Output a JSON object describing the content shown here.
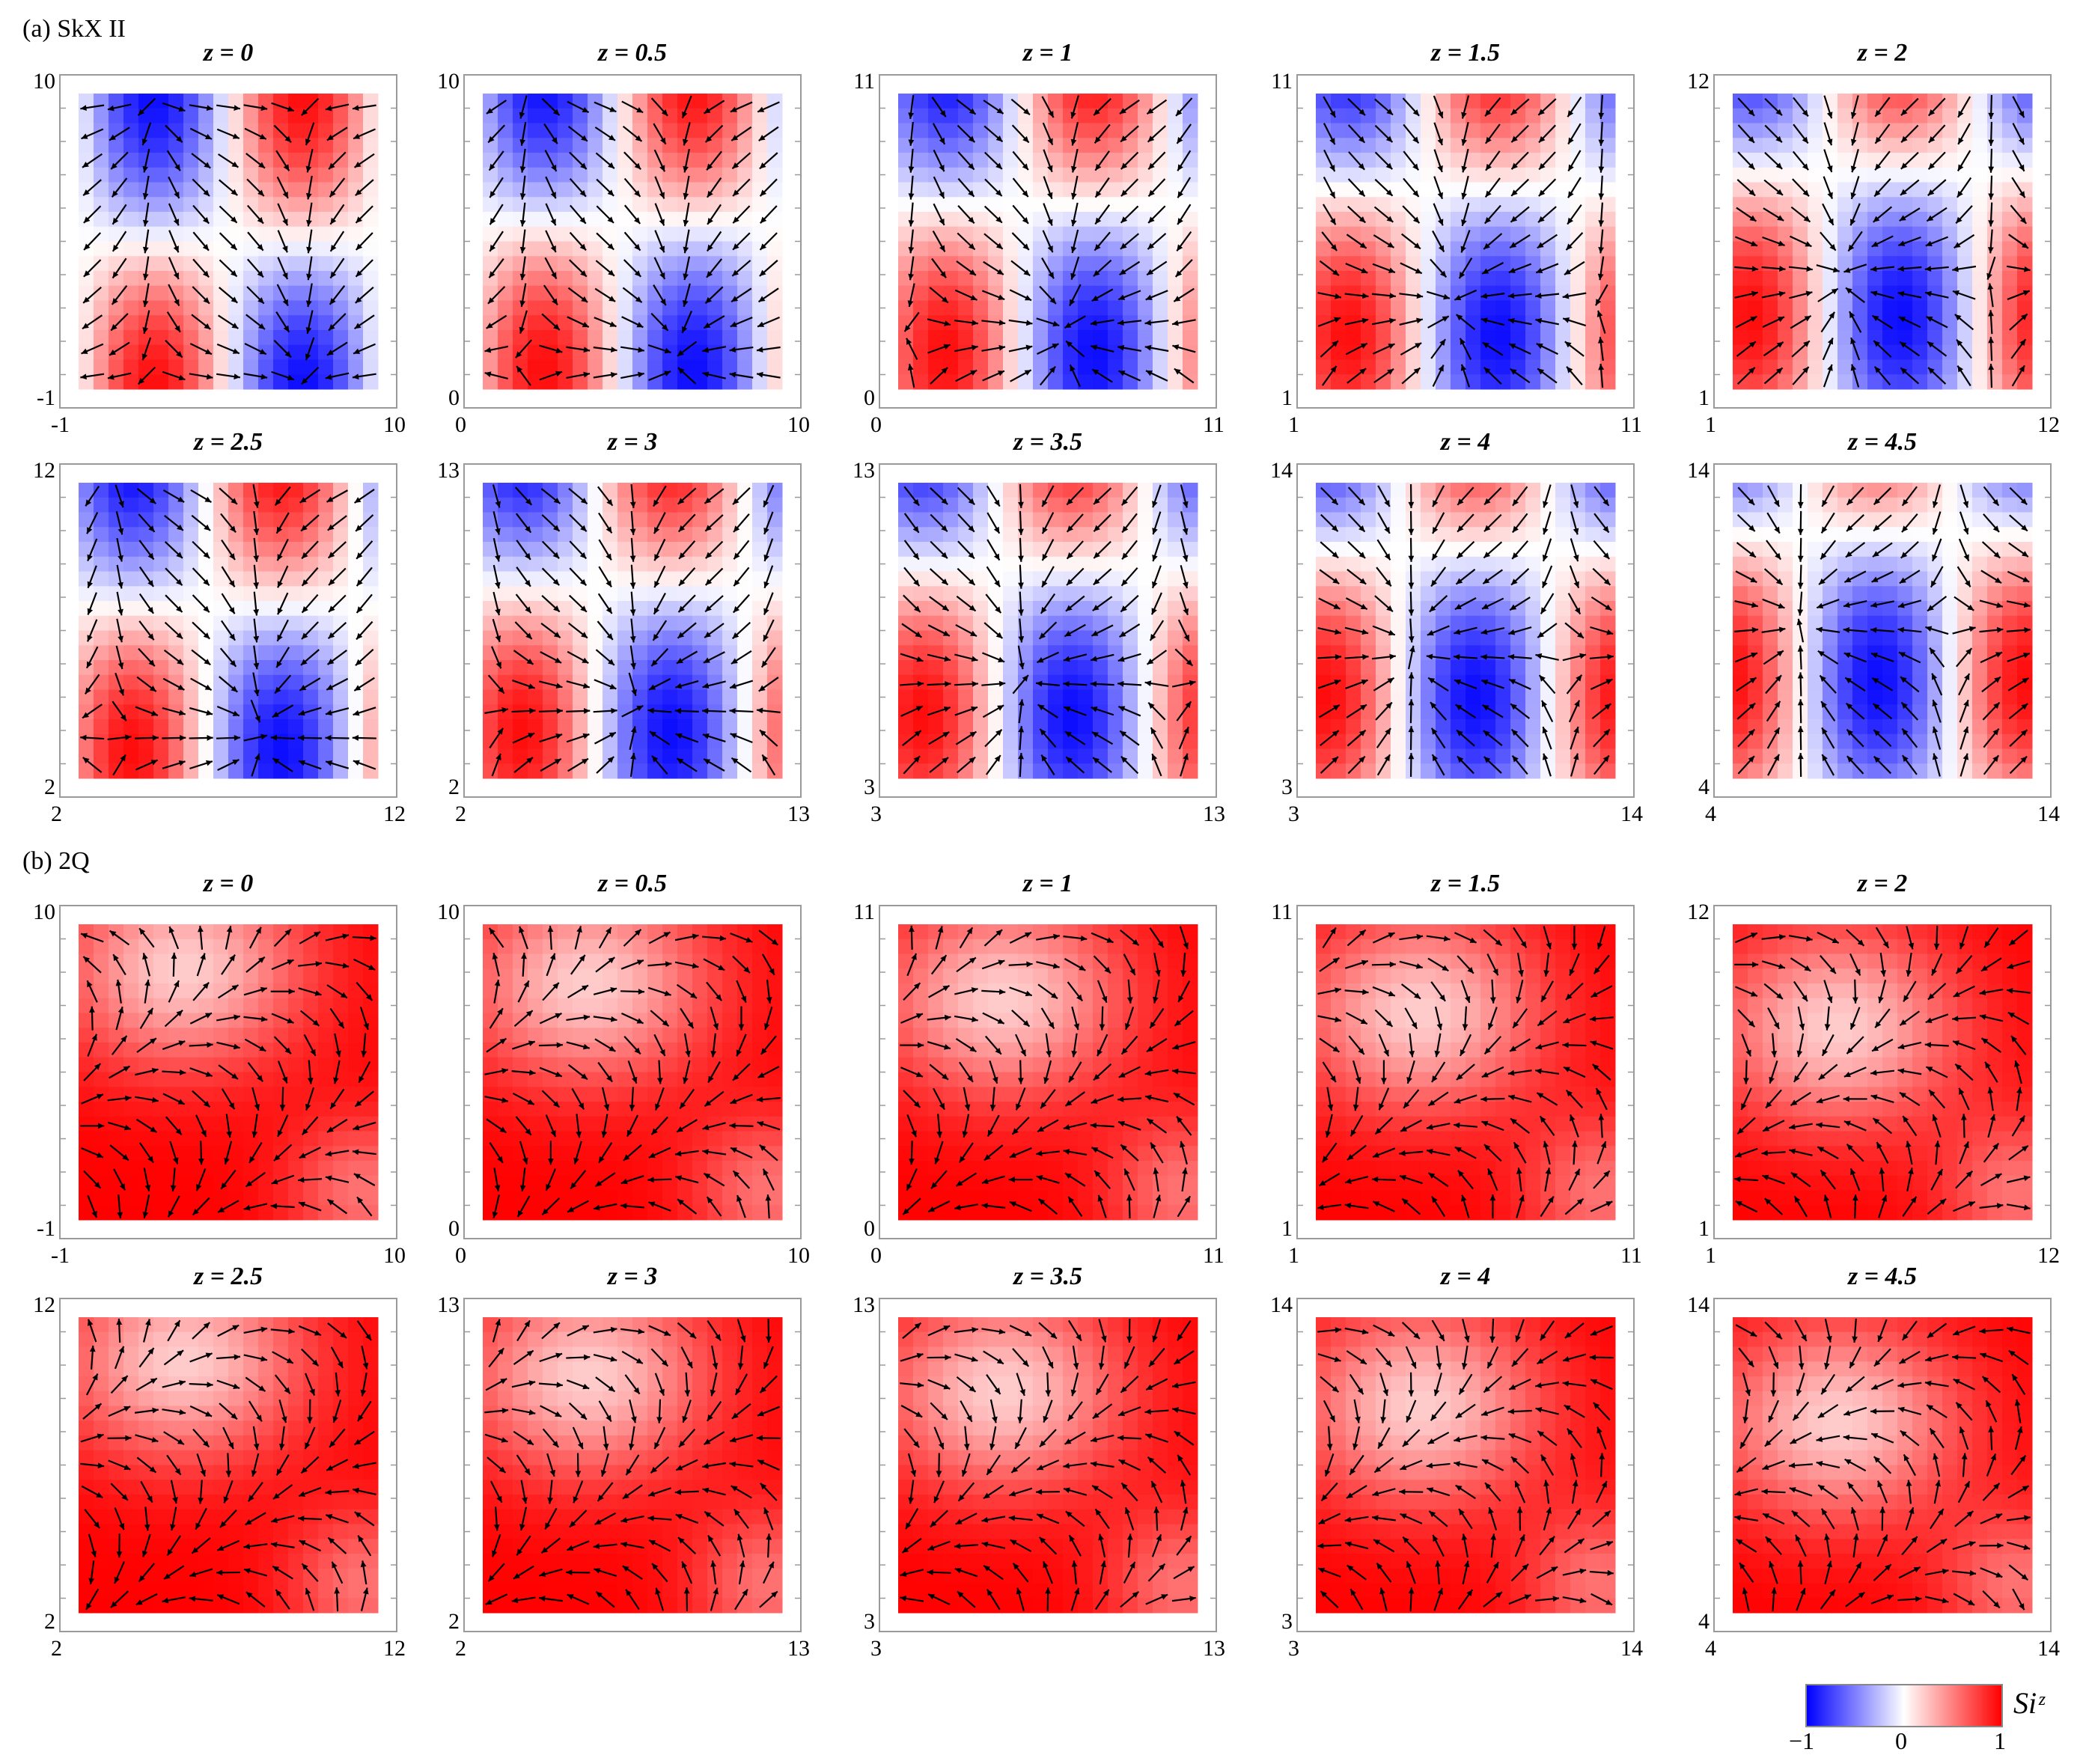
{
  "sections": [
    {
      "id": "a",
      "label_prefix": "(a) ",
      "label_main": "SkX II"
    },
    {
      "id": "b",
      "label_prefix": "(b) ",
      "label_main": "2Q"
    }
  ],
  "chart_data": {
    "type": "heatmap",
    "colorbar": {
      "title": "S_i^z",
      "title_display": "Siᶻ",
      "range": [
        -1,
        1
      ],
      "ticks": [
        "−1",
        "0",
        "1"
      ],
      "colors": {
        "low": "#0000ff",
        "mid": "#ffffff",
        "high": "#ff0000"
      }
    },
    "arrow_color": "#000000",
    "panels": [
      {
        "section": "a",
        "row": 0,
        "col": 0,
        "title": "z = 0",
        "xlim": [
          -1,
          10
        ],
        "ylim": [
          -1,
          10
        ],
        "x_ticks": [
          "-1",
          "10"
        ],
        "y_ticks": [
          "-1",
          "10"
        ],
        "pattern": "skx"
      },
      {
        "section": "a",
        "row": 0,
        "col": 1,
        "title": "z = 0.5",
        "xlim": [
          0,
          10
        ],
        "ylim": [
          0,
          10
        ],
        "x_ticks": [
          "0",
          "10"
        ],
        "y_ticks": [
          "0",
          "10"
        ],
        "pattern": "skx"
      },
      {
        "section": "a",
        "row": 0,
        "col": 2,
        "title": "z = 1",
        "xlim": [
          0,
          11
        ],
        "ylim": [
          0,
          11
        ],
        "x_ticks": [
          "0",
          "11"
        ],
        "y_ticks": [
          "0",
          "11"
        ],
        "pattern": "skx"
      },
      {
        "section": "a",
        "row": 0,
        "col": 3,
        "title": "z = 1.5",
        "xlim": [
          1,
          11
        ],
        "ylim": [
          1,
          11
        ],
        "x_ticks": [
          "1",
          "11"
        ],
        "y_ticks": [
          "1",
          "11"
        ],
        "pattern": "skx"
      },
      {
        "section": "a",
        "row": 0,
        "col": 4,
        "title": "z = 2",
        "xlim": [
          1,
          12
        ],
        "ylim": [
          1,
          12
        ],
        "x_ticks": [
          "1",
          "12"
        ],
        "y_ticks": [
          "1",
          "12"
        ],
        "pattern": "skx"
      },
      {
        "section": "a",
        "row": 1,
        "col": 0,
        "title": "z = 2.5",
        "xlim": [
          2,
          12
        ],
        "ylim": [
          2,
          12
        ],
        "x_ticks": [
          "2",
          "12"
        ],
        "y_ticks": [
          "2",
          "12"
        ],
        "pattern": "skx"
      },
      {
        "section": "a",
        "row": 1,
        "col": 1,
        "title": "z = 3",
        "xlim": [
          2,
          13
        ],
        "ylim": [
          2,
          13
        ],
        "x_ticks": [
          "2",
          "13"
        ],
        "y_ticks": [
          "2",
          "13"
        ],
        "pattern": "skx"
      },
      {
        "section": "a",
        "row": 1,
        "col": 2,
        "title": "z = 3.5",
        "xlim": [
          3,
          13
        ],
        "ylim": [
          3,
          13
        ],
        "x_ticks": [
          "3",
          "13"
        ],
        "y_ticks": [
          "3",
          "13"
        ],
        "pattern": "skx"
      },
      {
        "section": "a",
        "row": 1,
        "col": 3,
        "title": "z = 4",
        "xlim": [
          3,
          14
        ],
        "ylim": [
          3,
          14
        ],
        "x_ticks": [
          "3",
          "14"
        ],
        "y_ticks": [
          "3",
          "14"
        ],
        "pattern": "skx"
      },
      {
        "section": "a",
        "row": 1,
        "col": 4,
        "title": "z = 4.5",
        "xlim": [
          4,
          14
        ],
        "ylim": [
          4,
          14
        ],
        "x_ticks": [
          "4",
          "14"
        ],
        "y_ticks": [
          "4",
          "14"
        ],
        "pattern": "skx"
      },
      {
        "section": "b",
        "row": 0,
        "col": 0,
        "title": "z = 0",
        "xlim": [
          -1,
          10
        ],
        "ylim": [
          -1,
          10
        ],
        "x_ticks": [
          "-1",
          "10"
        ],
        "y_ticks": [
          "-1",
          "10"
        ],
        "pattern": "2q"
      },
      {
        "section": "b",
        "row": 0,
        "col": 1,
        "title": "z = 0.5",
        "xlim": [
          0,
          10
        ],
        "ylim": [
          0,
          10
        ],
        "x_ticks": [
          "0",
          "10"
        ],
        "y_ticks": [
          "0",
          "10"
        ],
        "pattern": "2q"
      },
      {
        "section": "b",
        "row": 0,
        "col": 2,
        "title": "z = 1",
        "xlim": [
          0,
          11
        ],
        "ylim": [
          0,
          11
        ],
        "x_ticks": [
          "0",
          "11"
        ],
        "y_ticks": [
          "0",
          "11"
        ],
        "pattern": "2q"
      },
      {
        "section": "b",
        "row": 0,
        "col": 3,
        "title": "z = 1.5",
        "xlim": [
          1,
          11
        ],
        "ylim": [
          1,
          11
        ],
        "x_ticks": [
          "1",
          "11"
        ],
        "y_ticks": [
          "1",
          "11"
        ],
        "pattern": "2q"
      },
      {
        "section": "b",
        "row": 0,
        "col": 4,
        "title": "z = 2",
        "xlim": [
          1,
          12
        ],
        "ylim": [
          1,
          12
        ],
        "x_ticks": [
          "1",
          "12"
        ],
        "y_ticks": [
          "1",
          "12"
        ],
        "pattern": "2q"
      },
      {
        "section": "b",
        "row": 1,
        "col": 0,
        "title": "z = 2.5",
        "xlim": [
          2,
          12
        ],
        "ylim": [
          2,
          12
        ],
        "x_ticks": [
          "2",
          "12"
        ],
        "y_ticks": [
          "2",
          "12"
        ],
        "pattern": "2q"
      },
      {
        "section": "b",
        "row": 1,
        "col": 1,
        "title": "z = 3",
        "xlim": [
          2,
          13
        ],
        "ylim": [
          2,
          13
        ],
        "x_ticks": [
          "2",
          "13"
        ],
        "y_ticks": [
          "2",
          "13"
        ],
        "pattern": "2q"
      },
      {
        "section": "b",
        "row": 1,
        "col": 2,
        "title": "z = 3.5",
        "xlim": [
          3,
          13
        ],
        "ylim": [
          3,
          13
        ],
        "x_ticks": [
          "3",
          "13"
        ],
        "y_ticks": [
          "3",
          "13"
        ],
        "pattern": "2q"
      },
      {
        "section": "b",
        "row": 1,
        "col": 3,
        "title": "z = 4",
        "xlim": [
          3,
          14
        ],
        "ylim": [
          3,
          14
        ],
        "x_ticks": [
          "3",
          "14"
        ],
        "y_ticks": [
          "3",
          "14"
        ],
        "pattern": "2q"
      },
      {
        "section": "b",
        "row": 1,
        "col": 4,
        "title": "z = 4.5",
        "xlim": [
          4,
          14
        ],
        "ylim": [
          4,
          14
        ],
        "x_ticks": [
          "4",
          "14"
        ],
        "y_ticks": [
          "4",
          "14"
        ],
        "pattern": "2q"
      }
    ]
  }
}
